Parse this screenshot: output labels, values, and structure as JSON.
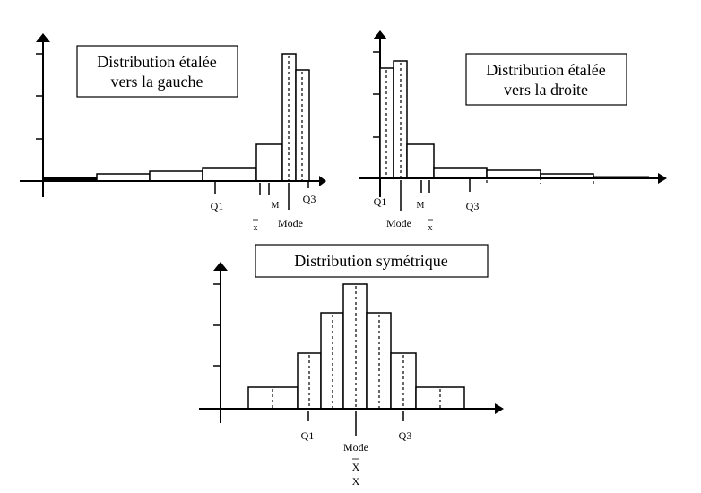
{
  "left_panel": {
    "title_line1": "Distribution étalée",
    "title_line2": "vers la gauche",
    "labels": {
      "q1": "Q1",
      "q3": "Q3",
      "mean": "x",
      "median": "M",
      "mode": "Mode"
    }
  },
  "right_panel": {
    "title_line1": "Distribution étalée",
    "title_line2": "vers la droite",
    "labels": {
      "q1": "Q1",
      "q3": "Q3",
      "mean": "x",
      "median": "M",
      "mode": "Mode"
    }
  },
  "bottom_panel": {
    "title": "Distribution symétrique",
    "labels": {
      "q1": "Q1",
      "q3": "Q3",
      "mode": "Mode",
      "mean": "X",
      "median": "X"
    }
  },
  "chart_data": [
    {
      "type": "bar",
      "title": "Distribution étalée vers la gauche",
      "values": [
        0.3,
        0.4,
        0.5,
        0.6,
        1.8,
        4.6,
        4.0
      ]
    },
    {
      "type": "bar",
      "title": "Distribution étalée vers la droite",
      "values": [
        4.0,
        4.6,
        1.8,
        0.6,
        0.5,
        0.4,
        0.3
      ]
    },
    {
      "type": "bar",
      "title": "Distribution symétrique",
      "values": [
        0.8,
        2.1,
        3.6,
        4.5,
        3.6,
        2.1,
        0.8
      ]
    }
  ]
}
